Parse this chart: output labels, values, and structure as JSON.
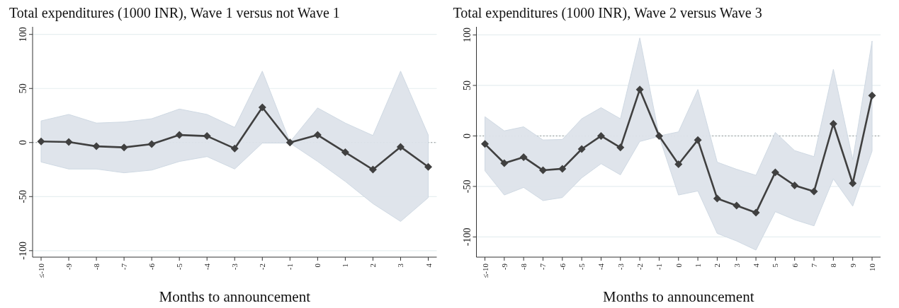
{
  "chart_data": [
    {
      "type": "line",
      "title": "Total expenditures (1000 INR), Wave 1 versus not Wave 1",
      "xlabel": "Months to announcement",
      "categories": [
        "≤-10",
        "-9",
        "-8",
        "-7",
        "-6",
        "-5",
        "-4",
        "-3",
        "-2",
        "-1",
        "0",
        "1",
        "2",
        "3",
        "4"
      ],
      "series": [
        {
          "color": "#404040",
          "values": [
            1,
            0.5,
            -3.5,
            -4.5,
            -1.5,
            7,
            6,
            -5.5,
            32.5,
            0,
            7,
            -9,
            -25,
            -4,
            -22.5
          ],
          "upper": [
            20,
            26,
            18,
            19,
            22,
            31,
            26,
            14,
            66,
            0.5,
            32,
            18,
            6.5,
            66,
            7
          ],
          "lower": [
            -18,
            -24.5,
            -24.5,
            -28,
            -25.5,
            -17.5,
            -13,
            -24.5,
            -0.5,
            -0.5,
            -17.5,
            -36,
            -56.5,
            -73,
            -51
          ]
        }
      ],
      "ylim": [
        -106,
        107
      ],
      "yticks": [
        -100,
        -50,
        0,
        50,
        100
      ],
      "grid": "y",
      "marker": "diamond",
      "line_style": "solid",
      "ref_lines": [
        {
          "axis": "y",
          "value": 0,
          "color": "#808080",
          "line_style": "dotted"
        }
      ]
    },
    {
      "type": "line",
      "title": "Total expenditures (1000 INR), Wave 2 versus Wave 3",
      "xlabel": "Months to announcement",
      "categories": [
        "≤-10",
        "-9",
        "-8",
        "-7",
        "-6",
        "-5",
        "-4",
        "-3",
        "-2",
        "-1",
        "0",
        "1",
        "2",
        "3",
        "4",
        "5",
        "6",
        "7",
        "8",
        "9",
        "10"
      ],
      "series": [
        {
          "color": "#404040",
          "values": [
            -8,
            -27,
            -21,
            -34,
            -32.5,
            -13,
            0,
            -11.5,
            46,
            0,
            -28,
            -4,
            -62,
            -69,
            -76,
            -36,
            -49,
            -55,
            12,
            -47,
            40
          ],
          "upper": [
            19,
            5,
            9,
            -4,
            -3.5,
            17,
            28,
            17,
            97,
            0,
            4,
            46,
            -26,
            -33,
            -39,
            3.5,
            -14.5,
            -20.5,
            66,
            -23.5,
            94
          ],
          "lower": [
            -34.5,
            -58.5,
            -51,
            -64,
            -61,
            -41.5,
            -27.5,
            -38.5,
            -5.5,
            -0.5,
            -58.5,
            -54.5,
            -96.5,
            -104,
            -113,
            -75,
            -83,
            -89,
            -42.5,
            -69.5,
            -15
          ]
        }
      ],
      "ylim": [
        -120,
        108
      ],
      "yticks": [
        -100,
        -50,
        0,
        50,
        100
      ],
      "grid": "y",
      "marker": "diamond",
      "line_style": "solid",
      "ref_lines": [
        {
          "axis": "y",
          "value": 0,
          "color": "#808080",
          "line_style": "dotted"
        }
      ]
    }
  ]
}
